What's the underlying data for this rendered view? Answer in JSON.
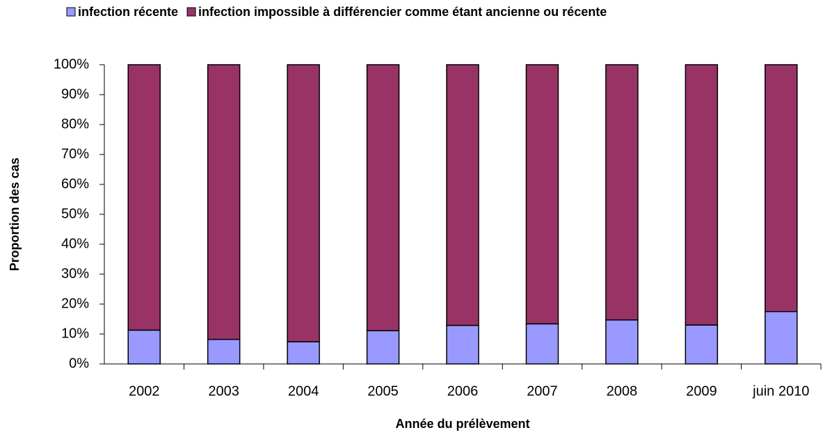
{
  "chart_data": {
    "type": "stacked_bar",
    "x_label": "Année du prélèvement",
    "y_label": "Proportion des cas",
    "categories": [
      "2002",
      "2003",
      "2004",
      "2005",
      "2006",
      "2007",
      "2008",
      "2009",
      "juin 2010"
    ],
    "series": [
      {
        "name": "infection récente",
        "color": "#9999ff",
        "values": [
          11.3,
          8.2,
          7.4,
          11.1,
          12.9,
          13.4,
          14.7,
          13.0,
          17.5
        ]
      },
      {
        "name": "infection impossible à différencier comme étant ancienne ou récente",
        "color": "#993366",
        "values": [
          88.7,
          91.8,
          92.6,
          88.9,
          87.1,
          86.6,
          85.3,
          87.0,
          82.5
        ]
      }
    ],
    "ylim": [
      0,
      100
    ],
    "yticks": [
      {
        "value": 0,
        "label": "0%"
      },
      {
        "value": 10,
        "label": "10%"
      },
      {
        "value": 20,
        "label": "20%"
      },
      {
        "value": 30,
        "label": "30%"
      },
      {
        "value": 40,
        "label": "40%"
      },
      {
        "value": 50,
        "label": "50%"
      },
      {
        "value": 60,
        "label": "60%"
      },
      {
        "value": 70,
        "label": "70%"
      },
      {
        "value": 80,
        "label": "80%"
      },
      {
        "value": 90,
        "label": "90%"
      },
      {
        "value": 100,
        "label": "100%"
      }
    ],
    "legend": "top",
    "grid": false
  }
}
